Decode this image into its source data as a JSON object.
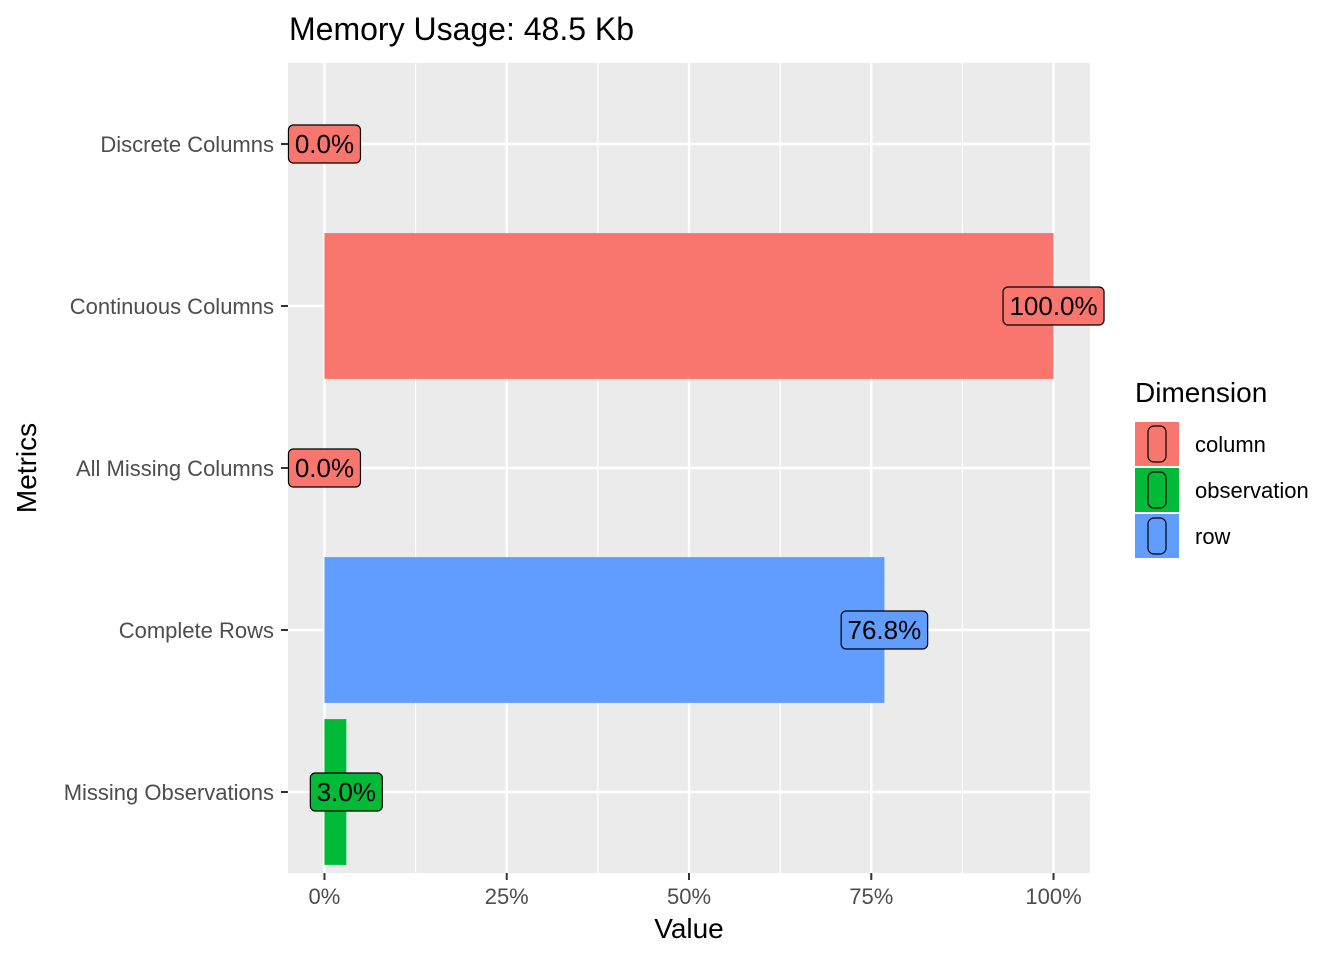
{
  "chart_data": {
    "type": "bar",
    "orientation": "horizontal",
    "title": "Memory Usage: 48.5 Kb",
    "xlabel": "Value",
    "ylabel": "Metrics",
    "xlim": [
      -0.05,
      1.05
    ],
    "xticks": [
      0,
      0.25,
      0.5,
      0.75,
      1.0
    ],
    "xtick_labels": [
      "0%",
      "25%",
      "50%",
      "75%",
      "100%"
    ],
    "grid": true,
    "categories": [
      "Discrete Columns",
      "Continuous Columns",
      "All Missing Columns",
      "Complete Rows",
      "Missing Observations"
    ],
    "values": [
      0.0,
      1.0,
      0.0,
      0.768,
      0.03
    ],
    "data_labels": [
      "0.0%",
      "100.0%",
      "0.0%",
      "76.8%",
      "3.0%"
    ],
    "dimension": [
      "column",
      "column",
      "column",
      "row",
      "observation"
    ],
    "legend": {
      "title": "Dimension",
      "position": "right",
      "entries": [
        {
          "name": "column",
          "color": "#F8766D"
        },
        {
          "name": "observation",
          "color": "#00BA38"
        },
        {
          "name": "row",
          "color": "#619CFF"
        }
      ]
    },
    "colors": {
      "panel_background": "#EBEBEB",
      "grid_line": "#FFFFFF",
      "axis_text": "#4D4D4D"
    }
  }
}
